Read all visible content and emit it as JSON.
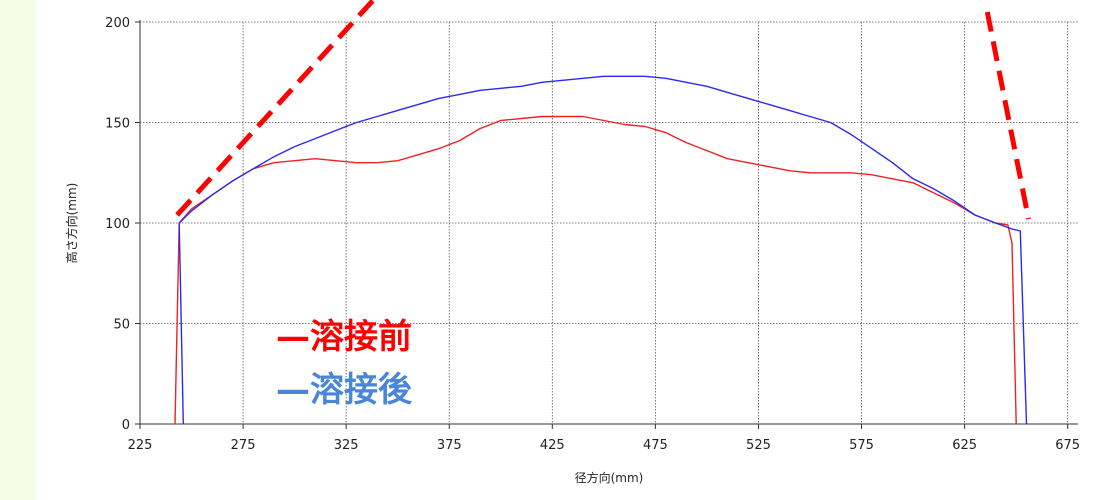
{
  "chart_data": {
    "type": "line",
    "xlabel": "径方向(mm)",
    "ylabel": "高さ方向(mm)",
    "xlim": [
      225,
      680
    ],
    "ylim": [
      0,
      200
    ],
    "x_ticks": [
      225,
      275,
      325,
      375,
      425,
      475,
      525,
      575,
      625,
      675
    ],
    "y_ticks": [
      0,
      50,
      100,
      150,
      200
    ],
    "grid": true,
    "legend_position": "lower-left inside plot",
    "series": [
      {
        "name": "溶接前",
        "color": "#ee2222",
        "legend_color": "#ff0000",
        "points": [
          [
            242,
            0
          ],
          [
            244,
            100
          ],
          [
            250,
            107
          ],
          [
            260,
            114
          ],
          [
            270,
            121
          ],
          [
            280,
            127
          ],
          [
            290,
            130
          ],
          [
            300,
            131
          ],
          [
            310,
            132
          ],
          [
            320,
            131
          ],
          [
            330,
            130
          ],
          [
            340,
            130
          ],
          [
            350,
            131
          ],
          [
            360,
            134
          ],
          [
            370,
            137
          ],
          [
            380,
            141
          ],
          [
            390,
            147
          ],
          [
            400,
            151
          ],
          [
            410,
            152
          ],
          [
            420,
            153
          ],
          [
            430,
            153
          ],
          [
            440,
            153
          ],
          [
            450,
            151
          ],
          [
            460,
            149
          ],
          [
            470,
            148
          ],
          [
            480,
            145
          ],
          [
            490,
            140
          ],
          [
            500,
            136
          ],
          [
            510,
            132
          ],
          [
            520,
            130
          ],
          [
            530,
            128
          ],
          [
            540,
            126
          ],
          [
            550,
            125
          ],
          [
            560,
            125
          ],
          [
            570,
            125
          ],
          [
            580,
            124
          ],
          [
            590,
            122
          ],
          [
            600,
            120
          ],
          [
            610,
            115
          ],
          [
            620,
            110
          ],
          [
            630,
            104
          ],
          [
            640,
            100
          ],
          [
            646,
            99
          ],
          [
            648,
            90
          ],
          [
            650,
            0
          ]
        ]
      },
      {
        "name": "溶接後",
        "color": "#2a2aee",
        "legend_color": "#4a86d8",
        "points": [
          [
            246,
            0
          ],
          [
            244,
            100
          ],
          [
            250,
            106
          ],
          [
            260,
            114
          ],
          [
            270,
            121
          ],
          [
            280,
            127
          ],
          [
            290,
            133
          ],
          [
            300,
            138
          ],
          [
            310,
            142
          ],
          [
            320,
            146
          ],
          [
            330,
            150
          ],
          [
            340,
            153
          ],
          [
            350,
            156
          ],
          [
            360,
            159
          ],
          [
            370,
            162
          ],
          [
            380,
            164
          ],
          [
            390,
            166
          ],
          [
            400,
            167
          ],
          [
            410,
            168
          ],
          [
            420,
            170
          ],
          [
            430,
            171
          ],
          [
            440,
            172
          ],
          [
            450,
            173
          ],
          [
            460,
            173
          ],
          [
            470,
            173
          ],
          [
            480,
            172
          ],
          [
            490,
            170
          ],
          [
            500,
            168
          ],
          [
            510,
            165
          ],
          [
            520,
            162
          ],
          [
            530,
            159
          ],
          [
            540,
            156
          ],
          [
            550,
            153
          ],
          [
            560,
            150
          ],
          [
            570,
            144
          ],
          [
            580,
            137
          ],
          [
            590,
            130
          ],
          [
            600,
            122
          ],
          [
            610,
            117
          ],
          [
            620,
            111
          ],
          [
            630,
            104
          ],
          [
            640,
            100
          ],
          [
            648,
            97
          ],
          [
            652,
            96
          ],
          [
            655,
            0
          ]
        ]
      }
    ],
    "annotations": [
      {
        "type": "dashed-line",
        "color": "#ff0000",
        "points": [
          [
            243,
            104
          ],
          [
            340,
            213
          ]
        ]
      },
      {
        "type": "dashed-line",
        "color": "#ff0000",
        "points": [
          [
            636,
            205
          ],
          [
            656,
            102
          ]
        ]
      }
    ]
  }
}
